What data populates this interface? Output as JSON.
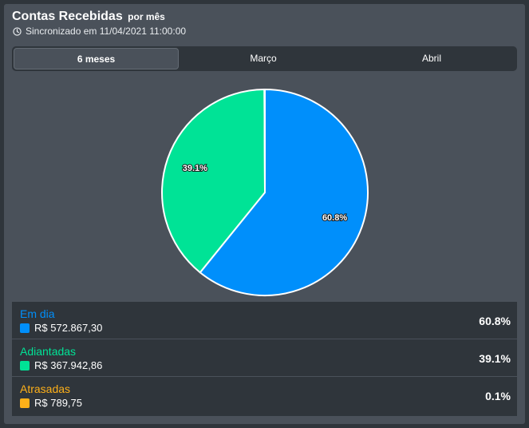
{
  "header": {
    "title": "Contas Recebidas",
    "title_suffix": "por mês",
    "sync_text": "Sincronizado em 11/04/2021 11:00:00"
  },
  "tabs": [
    {
      "label": "6 meses",
      "active": true
    },
    {
      "label": "Março",
      "active": false
    },
    {
      "label": "Abril",
      "active": false
    }
  ],
  "chart_data": {
    "type": "pie",
    "title": "",
    "labels": [
      "Em dia",
      "Adiantadas",
      "Atrasadas"
    ],
    "values": [
      572867.3,
      367942.86,
      789.75
    ],
    "percent_labels": [
      "60.8%",
      "39.1%",
      "0.1%"
    ],
    "colors": [
      "#008ffb",
      "#00e396",
      "#feb019"
    ]
  },
  "legend": {
    "rows": [
      {
        "name": "Em dia",
        "value": "R$ 572.867,30",
        "percent": "60.8%",
        "color": "#008ffb"
      },
      {
        "name": "Adiantadas",
        "value": "R$ 367.942,86",
        "percent": "39.1%",
        "color": "#00e396"
      },
      {
        "name": "Atrasadas",
        "value": "R$ 789,75",
        "percent": "0.1%",
        "color": "#feb019"
      }
    ]
  }
}
